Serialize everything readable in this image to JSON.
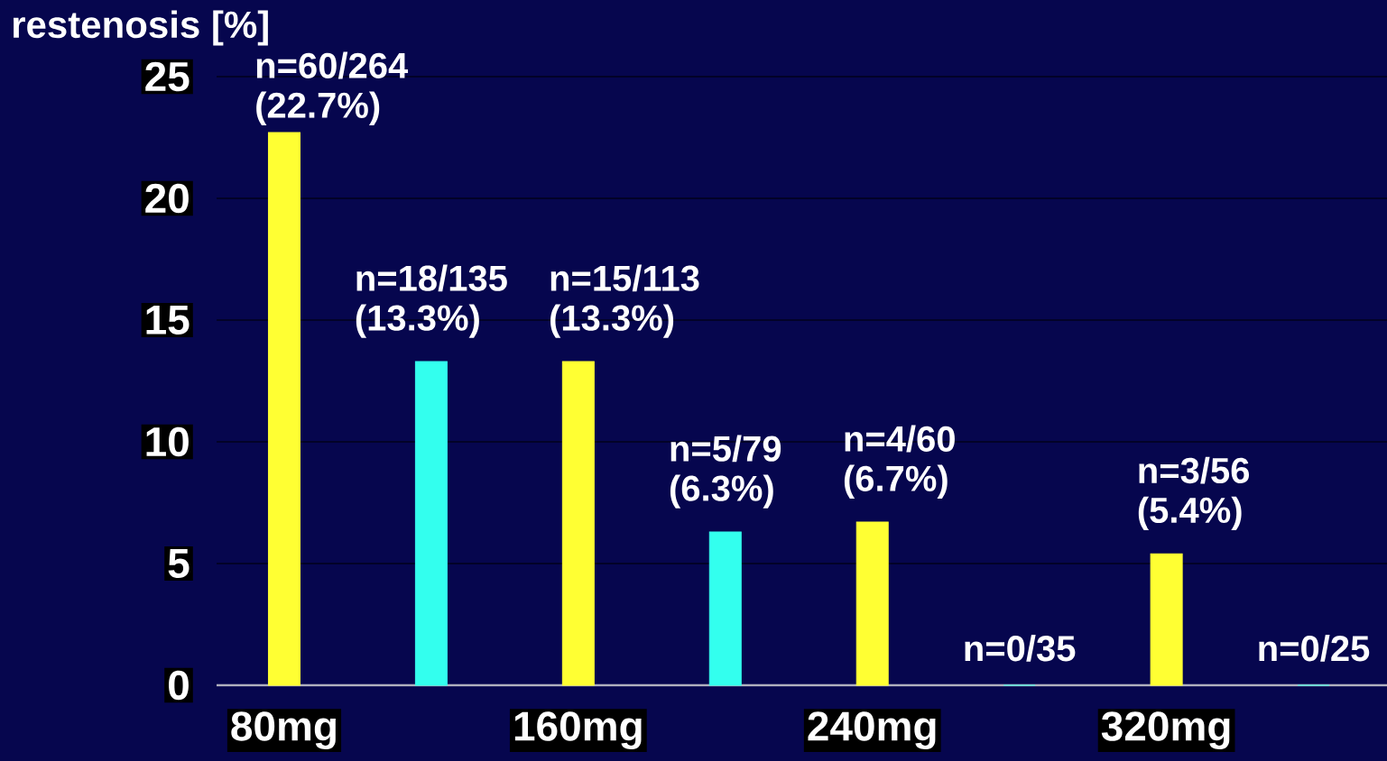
{
  "chart_data": {
    "type": "bar",
    "ylabel": "restenosis [%]",
    "categories": [
      "80mg",
      "160mg",
      "240mg",
      "320mg"
    ],
    "series": [
      {
        "color": "#ffff33",
        "values": [
          22.7,
          13.3,
          6.7,
          5.4
        ],
        "value_labels": [
          "n=60/264 (22.7%)",
          "n=15/113 (13.3%)",
          "n=4/60 (6.7%)",
          "n=3/56 (5.4%)"
        ]
      },
      {
        "color": "#33ffee",
        "values": [
          13.3,
          6.3,
          0,
          0
        ],
        "value_labels": [
          "n=18/135 (13.3%)",
          "n=5/79 (6.3%)",
          "n=0/35",
          "n=0/25"
        ]
      }
    ],
    "ylim": [
      0,
      25
    ],
    "yticks": [
      0,
      5,
      10,
      15,
      20,
      25
    ],
    "grid": "y"
  }
}
